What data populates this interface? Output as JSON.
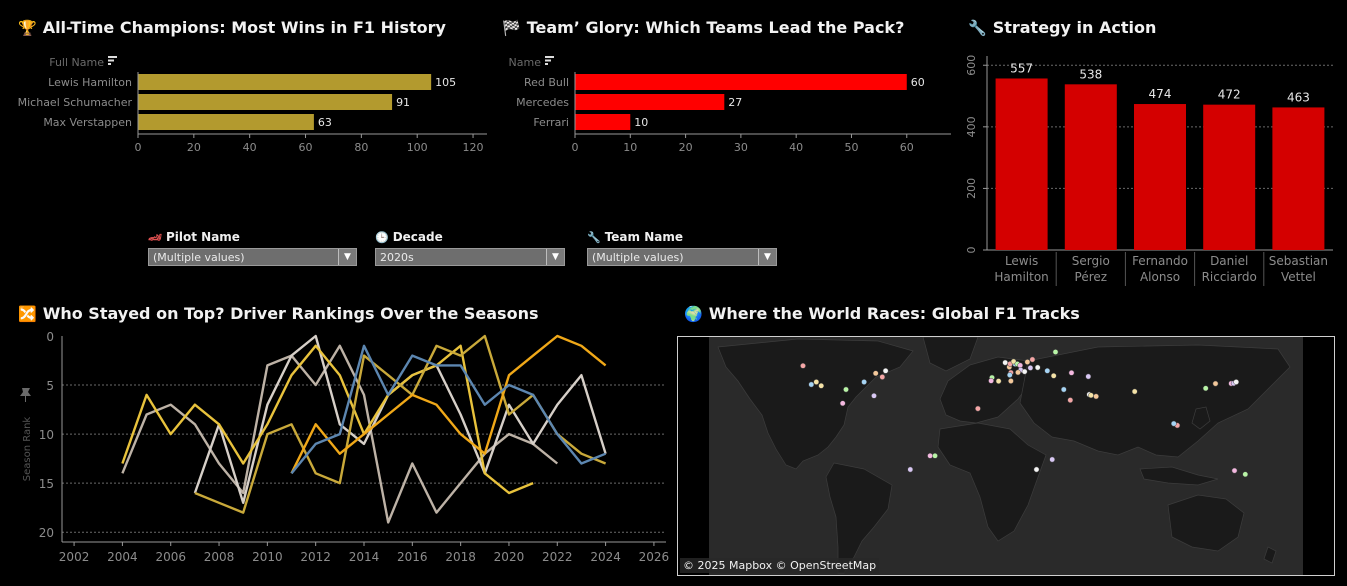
{
  "titles": {
    "champions": "All-Time Champions: Most Wins in F1 History",
    "teams": "Team’ Glory: Which Teams Lead the Pack?",
    "strategy": "Strategy in Action",
    "rankings": "Who Stayed on Top? Driver Rankings Over the Seasons",
    "tracks": "Where the World Races: Global F1 Tracks"
  },
  "icons": {
    "champions": "trophy-icon",
    "teams": "checkered-flag-icon",
    "strategy": "wrench-icon",
    "rankings": "shuffle-icon",
    "tracks": "globe-icon"
  },
  "filters": {
    "pilot": {
      "label": "Pilot Name",
      "value": "(Multiple values)",
      "icon": "race-car-icon"
    },
    "decade": {
      "label": "Decade",
      "value": "2020s",
      "icon": "clock-icon"
    },
    "team": {
      "label": "Team Name",
      "value": "(Multiple values)",
      "icon": "wrench-icon"
    }
  },
  "map": {
    "attribution": "© 2025 Mapbox © OpenStreetMap"
  },
  "colors": {
    "gold": "#b39a2e",
    "red": "#ff0000",
    "dark_red": "#d40000"
  },
  "chart_data": [
    {
      "id": "champions",
      "type": "bar",
      "orientation": "horizontal",
      "header": "Full Name",
      "categories": [
        "Lewis Hamilton",
        "Michael Schumacher",
        "Max Verstappen"
      ],
      "values": [
        105,
        91,
        63
      ],
      "xlim": [
        0,
        125
      ],
      "xticks": [
        0,
        20,
        40,
        60,
        80,
        100,
        120
      ],
      "color": "#b39a2e"
    },
    {
      "id": "teams",
      "type": "bar",
      "orientation": "horizontal",
      "header": "Name",
      "categories": [
        "Red Bull",
        "Mercedes",
        "Ferrari"
      ],
      "values": [
        60,
        27,
        10
      ],
      "xlim": [
        0,
        68
      ],
      "xticks": [
        0,
        10,
        20,
        30,
        40,
        50,
        60
      ],
      "color": "#ff0000"
    },
    {
      "id": "strategy",
      "type": "bar",
      "orientation": "vertical",
      "categories": [
        [
          "Lewis",
          "Hamilton"
        ],
        [
          "Sergio",
          "Pérez"
        ],
        [
          "Fernando",
          "Alonso"
        ],
        [
          "Daniel",
          "Ricciardo"
        ],
        [
          "Sebastian",
          "Vettel"
        ]
      ],
      "values": [
        557,
        538,
        474,
        472,
        463
      ],
      "ylim": [
        0,
        630
      ],
      "yticks": [
        0,
        200,
        400,
        600
      ],
      "color": "#d40000",
      "grid": true
    },
    {
      "id": "rankings",
      "type": "line",
      "ylabel": "Season Rank",
      "xlim": [
        2001.5,
        2026.5
      ],
      "ylim": [
        0,
        21
      ],
      "y_inverted": true,
      "xticks": [
        2002,
        2004,
        2006,
        2008,
        2010,
        2012,
        2014,
        2016,
        2018,
        2020,
        2022,
        2024,
        2026
      ],
      "yticks": [
        0,
        5,
        10,
        15,
        20
      ],
      "grid": true,
      "series": [
        {
          "color": "#bdb2a6",
          "x": [
            2004,
            2005,
            2006,
            2007,
            2008,
            2009,
            2010,
            2011,
            2012,
            2013,
            2014,
            2015,
            2016,
            2017,
            2018,
            2019,
            2020,
            2021,
            2022
          ],
          "y": [
            14,
            8,
            7,
            9,
            13,
            16,
            3,
            2,
            5,
            1,
            6,
            19,
            13,
            18,
            15,
            12,
            10,
            11,
            13
          ]
        },
        {
          "color": "#d6cfc8",
          "x": [
            2007,
            2008,
            2009,
            2010,
            2011,
            2012,
            2013,
            2014,
            2015,
            2016,
            2017,
            2018,
            2019,
            2020,
            2021,
            2022,
            2023,
            2024
          ],
          "y": [
            16,
            9,
            17,
            7,
            2,
            0,
            9,
            11,
            6,
            4,
            3,
            8,
            14,
            7,
            11,
            7,
            4,
            12
          ]
        },
        {
          "color": "#e8c23c",
          "x": [
            2004,
            2005,
            2006,
            2007,
            2008,
            2009,
            2010,
            2011,
            2012,
            2013,
            2014,
            2015,
            2016,
            2017,
            2018,
            2019,
            2020,
            2021
          ],
          "y": [
            13,
            6,
            10,
            7,
            9,
            13,
            9,
            4,
            1,
            4,
            10,
            6,
            4,
            3,
            1,
            14,
            16,
            15
          ]
        },
        {
          "color": "#c9a93a",
          "x": [
            2007,
            2008,
            2009,
            2010,
            2011,
            2012,
            2013,
            2014,
            2015,
            2016,
            2017,
            2018,
            2019,
            2020,
            2021,
            2022,
            2023,
            2024
          ],
          "y": [
            16,
            17,
            18,
            10,
            9,
            14,
            15,
            2,
            4,
            6,
            1,
            2,
            0,
            8,
            6,
            10,
            12,
            13
          ]
        },
        {
          "color": "#f0a818",
          "x": [
            2011,
            2012,
            2013,
            2014,
            2015,
            2016,
            2017,
            2018,
            2019,
            2020,
            2021,
            2022,
            2023,
            2024
          ],
          "y": [
            14,
            9,
            12,
            10,
            8,
            6,
            7,
            10,
            12,
            4,
            2,
            0,
            1,
            3
          ]
        },
        {
          "color": "#5c86b0",
          "x": [
            2011,
            2012,
            2013,
            2014,
            2015,
            2016,
            2017,
            2018,
            2019,
            2020,
            2021,
            2022,
            2023,
            2024
          ],
          "y": [
            14,
            11,
            10,
            1,
            6,
            2,
            3,
            3,
            7,
            5,
            6,
            10,
            13,
            12
          ]
        }
      ]
    }
  ],
  "tracks": [
    [
      -123,
      49
    ],
    [
      -118,
      34
    ],
    [
      -112,
      33
    ],
    [
      -97,
      30
    ],
    [
      -99,
      19
    ],
    [
      -80,
      25
    ],
    [
      -73,
      45
    ],
    [
      -79,
      43
    ],
    [
      -75,
      40
    ],
    [
      -86,
      36
    ],
    [
      -115,
      36
    ],
    [
      -43,
      -23
    ],
    [
      -46,
      -23
    ],
    [
      -58,
      -34
    ],
    [
      -0.5,
      51.5
    ],
    [
      2,
      48
    ],
    [
      2.5,
      50.5
    ],
    [
      5.5,
      50.4
    ],
    [
      4.6,
      52.4
    ],
    [
      6.9,
      50.4
    ],
    [
      8.6,
      49.3
    ],
    [
      8.9,
      45.6
    ],
    [
      11.3,
      44.3
    ],
    [
      7.3,
      43.7
    ],
    [
      3,
      43.5
    ],
    [
      2.3,
      41.6
    ],
    [
      -4.5,
      36.7
    ],
    [
      -8.5,
      39.5
    ],
    [
      -9,
      37
    ],
    [
      14.8,
      47.3
    ],
    [
      19.2,
      47.6
    ],
    [
      13,
      52
    ],
    [
      16,
      54
    ],
    [
      25,
      45
    ],
    [
      28.9,
      41
    ],
    [
      30,
      60
    ],
    [
      39.7,
      43.4
    ],
    [
      49.9,
      40.4
    ],
    [
      50.5,
      26
    ],
    [
      54.6,
      24.5
    ],
    [
      39,
      21.5
    ],
    [
      35,
      30
    ],
    [
      51.5,
      25.4
    ],
    [
      121,
      31
    ],
    [
      136.5,
      34.8
    ],
    [
      138,
      35
    ],
    [
      139.5,
      36
    ],
    [
      127,
      34.7
    ],
    [
      103.8,
      1.3
    ],
    [
      101.7,
      2.7
    ],
    [
      78,
      28.4
    ],
    [
      145,
      -37.8
    ],
    [
      138.5,
      -34.9
    ],
    [
      28,
      -26
    ],
    [
      18.5,
      -34
    ],
    [
      3,
      36.8
    ],
    [
      -17,
      14.7
    ]
  ]
}
